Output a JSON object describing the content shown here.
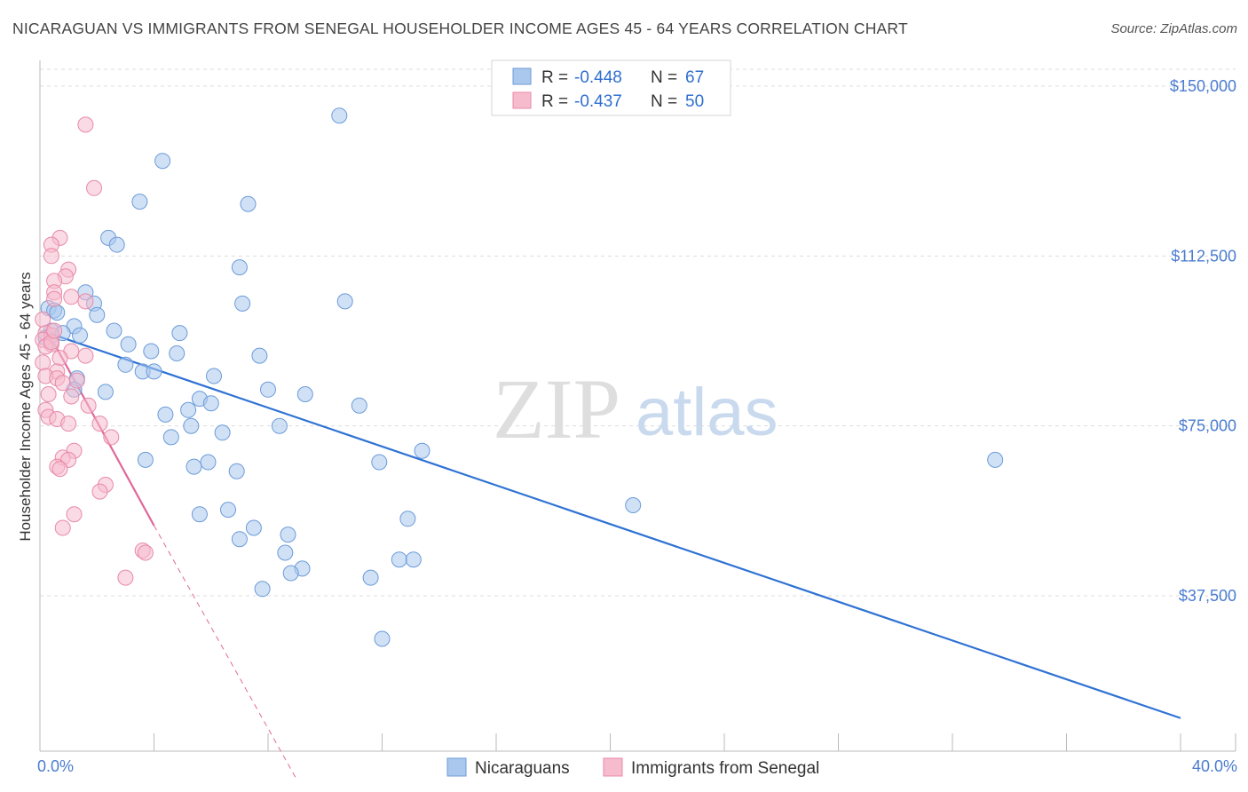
{
  "title": "NICARAGUAN VS IMMIGRANTS FROM SENEGAL HOUSEHOLDER INCOME AGES 45 - 64 YEARS CORRELATION CHART",
  "source": "Source: ZipAtlas.com",
  "watermark": {
    "zip": "ZIP",
    "atlas": "atlas"
  },
  "colors": {
    "blue_fill": "#aac8ee",
    "blue_stroke": "#6c9bd8",
    "blue_line": "#2f72d4",
    "pink_fill": "#f6bccd",
    "pink_stroke": "#e88aa8",
    "pink_line": "#e0689a",
    "axis_text": "#4a7cd0",
    "grid": "#dddddd"
  },
  "legend_top": {
    "rows": [
      {
        "r_label": "R =",
        "r_value": "-0.448",
        "n_label": "N =",
        "n_value": "67"
      },
      {
        "r_label": "R =",
        "r_value": "-0.437",
        "n_label": "N =",
        "n_value": "50"
      }
    ]
  },
  "chart_data": {
    "type": "scatter",
    "title": "NICARAGUAN VS IMMIGRANTS FROM SENEGAL HOUSEHOLDER INCOME AGES 45 - 64 YEARS CORRELATION CHART",
    "xlabel": "",
    "ylabel": "Householder Income Ages 45 - 64 years",
    "xlim": [
      0,
      40
    ],
    "ylim": [
      0,
      155000
    ],
    "x_tick_labels": [
      "0.0%",
      "40.0%"
    ],
    "y_ticks": [
      37500,
      75000,
      112500,
      150000
    ],
    "y_tick_labels": [
      "$37,500",
      "$75,000",
      "$112,500",
      "$150,000"
    ],
    "grid": true,
    "series": [
      {
        "name": "Nicaraguans",
        "color": "#aac8ee",
        "trend": {
          "x": [
            0.3,
            40
          ],
          "y": [
            95500,
            10500
          ]
        },
        "points": [
          [
            10.5,
            143500
          ],
          [
            4.3,
            133500
          ],
          [
            3.5,
            124500
          ],
          [
            7.3,
            124000
          ],
          [
            2.4,
            116500
          ],
          [
            2.7,
            115000
          ],
          [
            7.0,
            110000
          ],
          [
            10.7,
            102500
          ],
          [
            7.1,
            102000
          ],
          [
            1.6,
            104500
          ],
          [
            1.9,
            102000
          ],
          [
            0.3,
            101000
          ],
          [
            0.5,
            100500
          ],
          [
            0.6,
            100000
          ],
          [
            2.0,
            99500
          ],
          [
            1.2,
            97000
          ],
          [
            0.4,
            96000
          ],
          [
            0.8,
            95500
          ],
          [
            2.6,
            96000
          ],
          [
            4.9,
            95500
          ],
          [
            1.4,
            95000
          ],
          [
            0.2,
            94500
          ],
          [
            0.4,
            93500
          ],
          [
            3.1,
            93000
          ],
          [
            3.9,
            91500
          ],
          [
            4.8,
            91000
          ],
          [
            7.7,
            90500
          ],
          [
            3.0,
            88500
          ],
          [
            3.6,
            87000
          ],
          [
            4.0,
            87000
          ],
          [
            6.1,
            86000
          ],
          [
            1.3,
            85500
          ],
          [
            1.2,
            83000
          ],
          [
            2.3,
            82500
          ],
          [
            8.0,
            83000
          ],
          [
            9.3,
            82000
          ],
          [
            11.2,
            79500
          ],
          [
            5.6,
            81000
          ],
          [
            6.0,
            80000
          ],
          [
            5.2,
            78500
          ],
          [
            4.4,
            77500
          ],
          [
            8.4,
            75000
          ],
          [
            5.3,
            75000
          ],
          [
            6.4,
            73500
          ],
          [
            4.6,
            72500
          ],
          [
            13.4,
            69500
          ],
          [
            11.9,
            67000
          ],
          [
            3.7,
            67500
          ],
          [
            5.9,
            67000
          ],
          [
            5.4,
            66000
          ],
          [
            6.9,
            65000
          ],
          [
            33.5,
            67500
          ],
          [
            20.8,
            57500
          ],
          [
            6.6,
            56500
          ],
          [
            5.6,
            55500
          ],
          [
            12.9,
            54500
          ],
          [
            7.5,
            52500
          ],
          [
            8.7,
            51000
          ],
          [
            7.0,
            50000
          ],
          [
            8.6,
            47000
          ],
          [
            12.6,
            45500
          ],
          [
            13.1,
            45500
          ],
          [
            9.2,
            43500
          ],
          [
            8.8,
            42500
          ],
          [
            11.6,
            41500
          ],
          [
            7.8,
            39000
          ],
          [
            12.0,
            28000
          ]
        ]
      },
      {
        "name": "Immigrants from Senegal",
        "color": "#f6bccd",
        "trend": {
          "x": [
            0.3,
            4.0
          ],
          "y": [
            95500,
            53000
          ]
        },
        "trend_dashed": {
          "x": [
            4.0,
            9.0
          ],
          "y": [
            53000,
            -3000
          ]
        },
        "points": [
          [
            1.6,
            141500
          ],
          [
            1.9,
            127500
          ],
          [
            0.7,
            116500
          ],
          [
            0.4,
            115000
          ],
          [
            0.4,
            112500
          ],
          [
            1.0,
            109500
          ],
          [
            0.9,
            108000
          ],
          [
            0.5,
            107000
          ],
          [
            0.5,
            104500
          ],
          [
            1.1,
            103500
          ],
          [
            1.6,
            102500
          ],
          [
            0.5,
            103000
          ],
          [
            0.1,
            98500
          ],
          [
            0.2,
            95500
          ],
          [
            0.4,
            95000
          ],
          [
            0.1,
            94000
          ],
          [
            0.4,
            93000
          ],
          [
            0.2,
            92500
          ],
          [
            1.1,
            91500
          ],
          [
            1.6,
            90500
          ],
          [
            0.7,
            90000
          ],
          [
            0.1,
            89000
          ],
          [
            0.6,
            87000
          ],
          [
            0.2,
            86000
          ],
          [
            0.6,
            85500
          ],
          [
            0.8,
            84500
          ],
          [
            1.3,
            85000
          ],
          [
            0.3,
            82000
          ],
          [
            1.1,
            81500
          ],
          [
            1.7,
            79500
          ],
          [
            0.2,
            78500
          ],
          [
            0.3,
            77000
          ],
          [
            0.6,
            76500
          ],
          [
            1.0,
            75500
          ],
          [
            2.1,
            75500
          ],
          [
            2.5,
            72500
          ],
          [
            1.2,
            69500
          ],
          [
            0.8,
            68000
          ],
          [
            1.0,
            67500
          ],
          [
            0.6,
            66000
          ],
          [
            0.7,
            65500
          ],
          [
            2.3,
            62000
          ],
          [
            2.1,
            60500
          ],
          [
            1.2,
            55500
          ],
          [
            0.8,
            52500
          ],
          [
            3.6,
            47500
          ],
          [
            3.7,
            47000
          ],
          [
            3.0,
            41500
          ],
          [
            0.4,
            93500
          ],
          [
            0.5,
            96000
          ]
        ]
      }
    ]
  },
  "legend_bottom": [
    {
      "label": "Nicaraguans"
    },
    {
      "label": "Immigrants from Senegal"
    }
  ]
}
